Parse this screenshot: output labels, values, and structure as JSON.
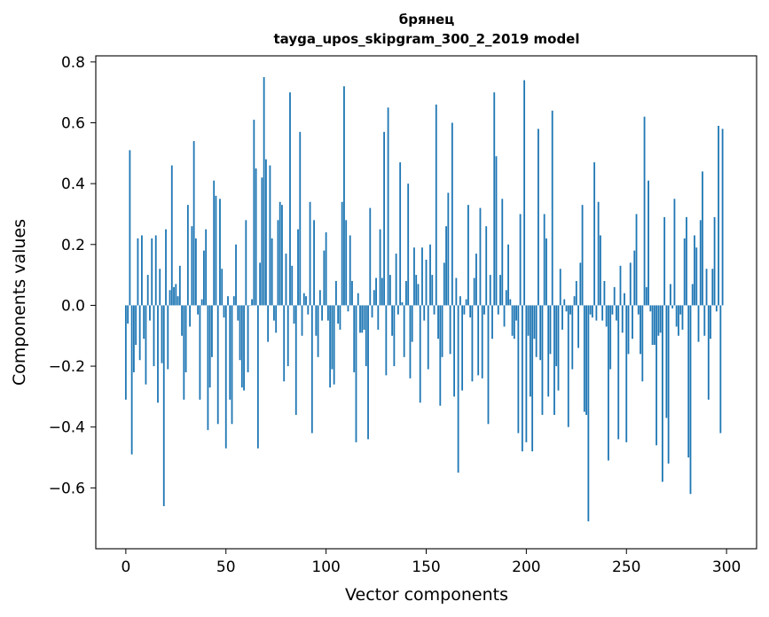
{
  "chart_data": {
    "type": "bar",
    "title_line1": "брянец",
    "title_line2": "tayga_upos_skipgram_300_2_2019 model",
    "xlabel": "Vector components",
    "ylabel": "Components values",
    "xlim": [
      -15,
      315
    ],
    "ylim": [
      -0.8,
      0.82
    ],
    "xticks": [
      0,
      50,
      100,
      150,
      200,
      250,
      300
    ],
    "yticks": [
      -0.6,
      -0.4,
      -0.2,
      0.0,
      0.2,
      0.4,
      0.6,
      0.8
    ],
    "xtick_labels": [
      "0",
      "50",
      "100",
      "150",
      "200",
      "250",
      "300"
    ],
    "ytick_labels": [
      "−0.6",
      "−0.4",
      "−0.2",
      "0.0",
      "0.2",
      "0.4",
      "0.6",
      "0.8"
    ],
    "bar_color": "#1f77b4",
    "grid": false,
    "values": [
      -0.31,
      -0.06,
      0.51,
      -0.49,
      -0.22,
      -0.13,
      0.22,
      -0.18,
      0.23,
      -0.11,
      -0.26,
      0.1,
      -0.05,
      0.22,
      -0.2,
      0.23,
      -0.32,
      0.12,
      -0.19,
      -0.66,
      0.25,
      -0.21,
      0.05,
      0.46,
      0.06,
      0.07,
      0.03,
      0.13,
      -0.1,
      -0.31,
      -0.22,
      0.33,
      -0.07,
      0.26,
      0.54,
      0.22,
      -0.03,
      -0.31,
      0.02,
      0.18,
      0.25,
      -0.41,
      -0.27,
      -0.17,
      0.41,
      0.36,
      -0.39,
      0.35,
      0.12,
      -0.04,
      -0.47,
      0.03,
      -0.31,
      -0.39,
      0.03,
      0.2,
      -0.05,
      -0.18,
      -0.27,
      -0.28,
      0.28,
      -0.22,
      0.0,
      0.02,
      0.61,
      0.45,
      -0.47,
      0.14,
      0.42,
      0.75,
      0.48,
      -0.12,
      0.46,
      0.22,
      -0.05,
      -0.09,
      0.28,
      0.34,
      0.33,
      -0.25,
      0.17,
      -0.2,
      0.7,
      0.13,
      -0.06,
      -0.36,
      0.25,
      0.57,
      -0.1,
      0.04,
      0.03,
      -0.03,
      0.34,
      -0.42,
      0.28,
      -0.1,
      -0.17,
      0.05,
      -0.05,
      0.18,
      0.24,
      -0.05,
      -0.27,
      -0.21,
      -0.26,
      0.08,
      -0.06,
      -0.08,
      0.34,
      0.72,
      0.28,
      -0.02,
      0.23,
      0.08,
      -0.22,
      -0.45,
      0.04,
      -0.09,
      -0.09,
      -0.08,
      -0.2,
      -0.44,
      0.32,
      -0.04,
      0.05,
      0.09,
      -0.08,
      0.25,
      0.09,
      0.57,
      -0.23,
      0.65,
      0.1,
      -0.1,
      -0.2,
      0.17,
      -0.03,
      0.47,
      0.01,
      -0.17,
      0.08,
      0.4,
      -0.24,
      -0.12,
      0.19,
      0.1,
      0.07,
      -0.32,
      0.19,
      -0.05,
      0.15,
      -0.21,
      0.2,
      0.1,
      -0.03,
      0.66,
      -0.11,
      -0.33,
      -0.17,
      0.14,
      0.26,
      0.37,
      -0.16,
      0.6,
      -0.3,
      0.09,
      -0.55,
      0.03,
      -0.28,
      -0.03,
      0.02,
      0.33,
      -0.04,
      -0.25,
      0.09,
      0.17,
      -0.23,
      0.32,
      -0.24,
      -0.03,
      0.26,
      -0.39,
      0.1,
      -0.11,
      0.7,
      0.49,
      -0.03,
      0.1,
      0.35,
      -0.07,
      0.05,
      0.2,
      0.02,
      -0.1,
      -0.11,
      -0.05,
      -0.42,
      0.3,
      -0.48,
      0.74,
      -0.45,
      -0.1,
      -0.3,
      -0.48,
      -0.11,
      -0.17,
      0.58,
      -0.18,
      -0.36,
      0.3,
      0.22,
      -0.3,
      -0.16,
      0.64,
      -0.36,
      -0.2,
      -0.28,
      0.12,
      -0.08,
      0.02,
      -0.02,
      -0.4,
      -0.03,
      -0.21,
      0.03,
      0.08,
      -0.14,
      0.14,
      0.33,
      -0.35,
      -0.36,
      -0.71,
      -0.03,
      -0.04,
      0.47,
      -0.05,
      0.34,
      0.23,
      -0.05,
      0.08,
      -0.07,
      -0.51,
      -0.21,
      -0.03,
      0.06,
      -0.05,
      -0.44,
      0.13,
      -0.09,
      0.04,
      -0.45,
      -0.16,
      0.14,
      -0.11,
      0.18,
      0.3,
      -0.03,
      -0.16,
      -0.25,
      0.62,
      0.06,
      0.41,
      -0.02,
      -0.13,
      -0.13,
      -0.46,
      -0.1,
      -0.09,
      -0.58,
      0.29,
      -0.37,
      -0.52,
      0.07,
      -0.01,
      0.35,
      -0.07,
      -0.1,
      -0.03,
      -0.08,
      0.22,
      0.29,
      -0.5,
      -0.62,
      0.07,
      0.23,
      0.19,
      -0.12,
      0.28,
      0.44,
      -0.1,
      0.12,
      -0.31,
      -0.11,
      0.12,
      0.29,
      -0.02,
      0.59,
      -0.42,
      0.58
    ]
  }
}
